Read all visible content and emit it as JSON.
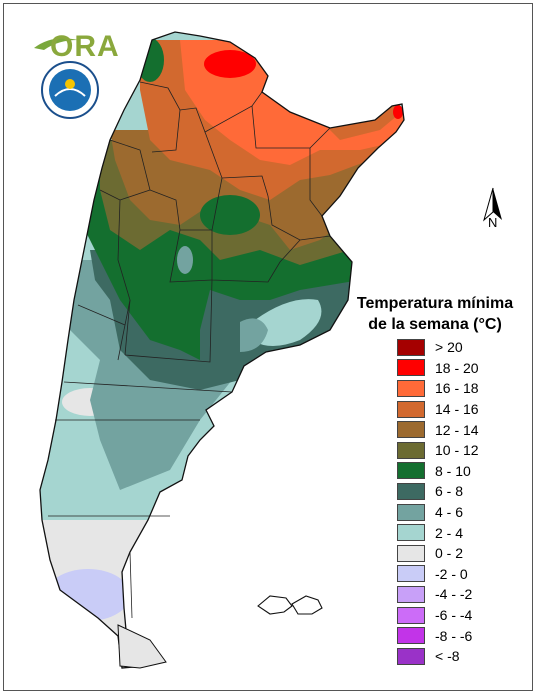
{
  "logo": {
    "text": "ORA"
  },
  "north_arrow": {
    "label": "N"
  },
  "legend": {
    "title_line1": "Temperatura mínima",
    "title_line2": "de la semana (°C)",
    "items": [
      {
        "label": "> 20",
        "color": "#a50000"
      },
      {
        "label": "18 - 20",
        "color": "#ff0000"
      },
      {
        "label": "16 - 18",
        "color": "#ff6a38"
      },
      {
        "label": "14 - 16",
        "color": "#d2692f"
      },
      {
        "label": "12 - 14",
        "color": "#9c6a2f"
      },
      {
        "label": "10 - 12",
        "color": "#6c6b32"
      },
      {
        "label": "8 - 10",
        "color": "#146f2f"
      },
      {
        "label": "6 - 8",
        "color": "#3d6a62"
      },
      {
        "label": "4 - 6",
        "color": "#73a3a0"
      },
      {
        "label": "2 - 4",
        "color": "#a5d5d0"
      },
      {
        "label": "0 - 2",
        "color": "#e6e6e6"
      },
      {
        "label": "-2 - 0",
        "color": "#c9ccf7"
      },
      {
        "label": "-4 - -2",
        "color": "#c8a0f8"
      },
      {
        "label": "-6 - -4",
        "color": "#cc6cf8"
      },
      {
        "label": "-8 - -6",
        "color": "#c234e8"
      },
      {
        "label": "< -8",
        "color": "#9a32c8"
      }
    ]
  }
}
